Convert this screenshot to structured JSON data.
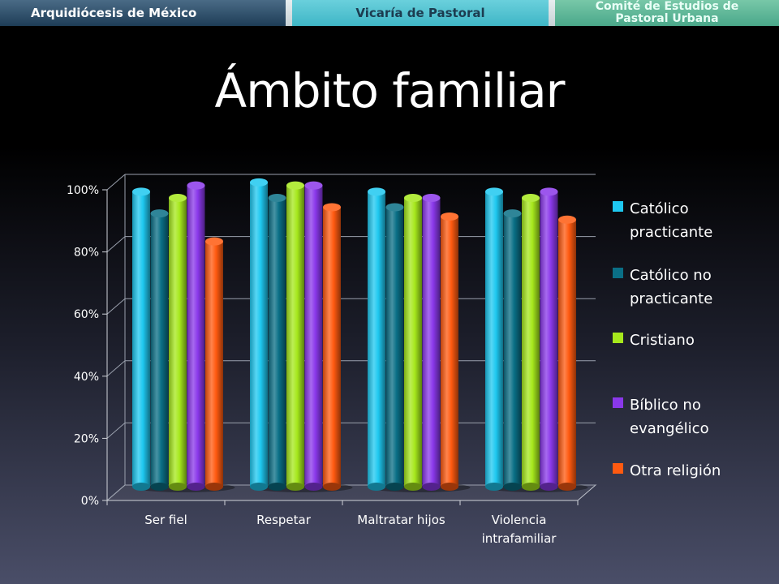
{
  "header": {
    "left": "Arquidiócesis de México",
    "center": "Vicaría de Pastoral",
    "right_line1": "Comité de Estudios de",
    "right_line2": "Pastoral Urbana"
  },
  "slide": {
    "title": "Ámbito familiar"
  },
  "chart_data": {
    "type": "bar",
    "title": "",
    "xlabel": "",
    "ylabel": "",
    "ylim": [
      0,
      100
    ],
    "yticks": [
      "0%",
      "20%",
      "40%",
      "60%",
      "80%",
      "100%"
    ],
    "categories": [
      [
        "Ser fiel"
      ],
      [
        "Respetar"
      ],
      [
        "Maltratar hijos"
      ],
      [
        "Violencia",
        "intrafamiliar"
      ]
    ],
    "series": [
      {
        "name": [
          "Católico",
          "practicante"
        ],
        "color": "#1ec8f0",
        "values": [
          96,
          99,
          96,
          96
        ]
      },
      {
        "name": [
          "Católico no",
          "practicante"
        ],
        "color": "#0a6f86",
        "values": [
          89,
          94,
          91,
          89
        ]
      },
      {
        "name": [
          "Cristiano"
        ],
        "color": "#a6e81c",
        "values": [
          94,
          98,
          94,
          94
        ]
      },
      {
        "name": [
          "Bíblico no",
          "evangélico"
        ],
        "color": "#8a38ea",
        "values": [
          98,
          98,
          94,
          96
        ]
      },
      {
        "name": [
          "Otra religión"
        ],
        "color": "#ff5a10",
        "values": [
          80,
          91,
          88,
          87
        ]
      }
    ],
    "grid": true,
    "legend": "right"
  }
}
